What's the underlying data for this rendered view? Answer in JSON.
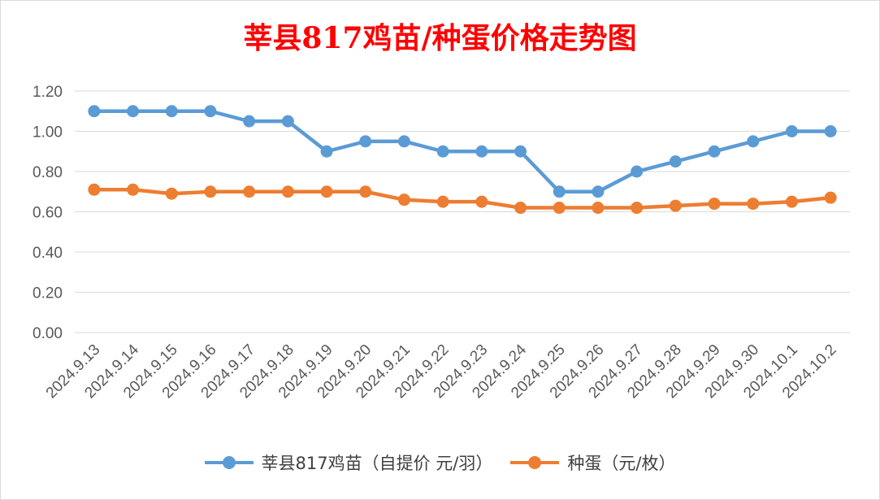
{
  "chart_data": {
    "type": "line",
    "title": "莘县817鸡苗/种蛋价格走势图",
    "categories": [
      "2024.9.13",
      "2024.9.14",
      "2024.9.15",
      "2024.9.16",
      "2024.9.17",
      "2024.9.18",
      "2024.9.19",
      "2024.9.20",
      "2024.9.21",
      "2024.9.22",
      "2024.9.23",
      "2024.9.24",
      "2024.9.25",
      "2024.9.26",
      "2024.9.27",
      "2024.9.28",
      "2024.9.29",
      "2024.9.30",
      "2024.10.1",
      "2024.10.2"
    ],
    "series": [
      {
        "name": "莘县817鸡苗（自提价 元/羽）",
        "color": "#5b9bd5",
        "values": [
          1.1,
          1.1,
          1.1,
          1.1,
          1.05,
          1.05,
          0.9,
          0.95,
          0.95,
          0.9,
          0.9,
          0.9,
          0.7,
          0.7,
          0.8,
          0.85,
          0.9,
          0.95,
          1.0,
          1.0
        ]
      },
      {
        "name": "种蛋（元/枚）",
        "color": "#ed7d31",
        "values": [
          0.71,
          0.71,
          0.69,
          0.7,
          0.7,
          0.7,
          0.7,
          0.7,
          0.66,
          0.65,
          0.65,
          0.62,
          0.62,
          0.62,
          0.62,
          0.63,
          0.64,
          0.64,
          0.65,
          0.67
        ]
      }
    ],
    "ylim": [
      0,
      1.2
    ],
    "yticks": [
      "0.00",
      "0.20",
      "0.40",
      "0.60",
      "0.80",
      "1.00",
      "1.20"
    ],
    "grid": true,
    "legend": "bottom"
  }
}
